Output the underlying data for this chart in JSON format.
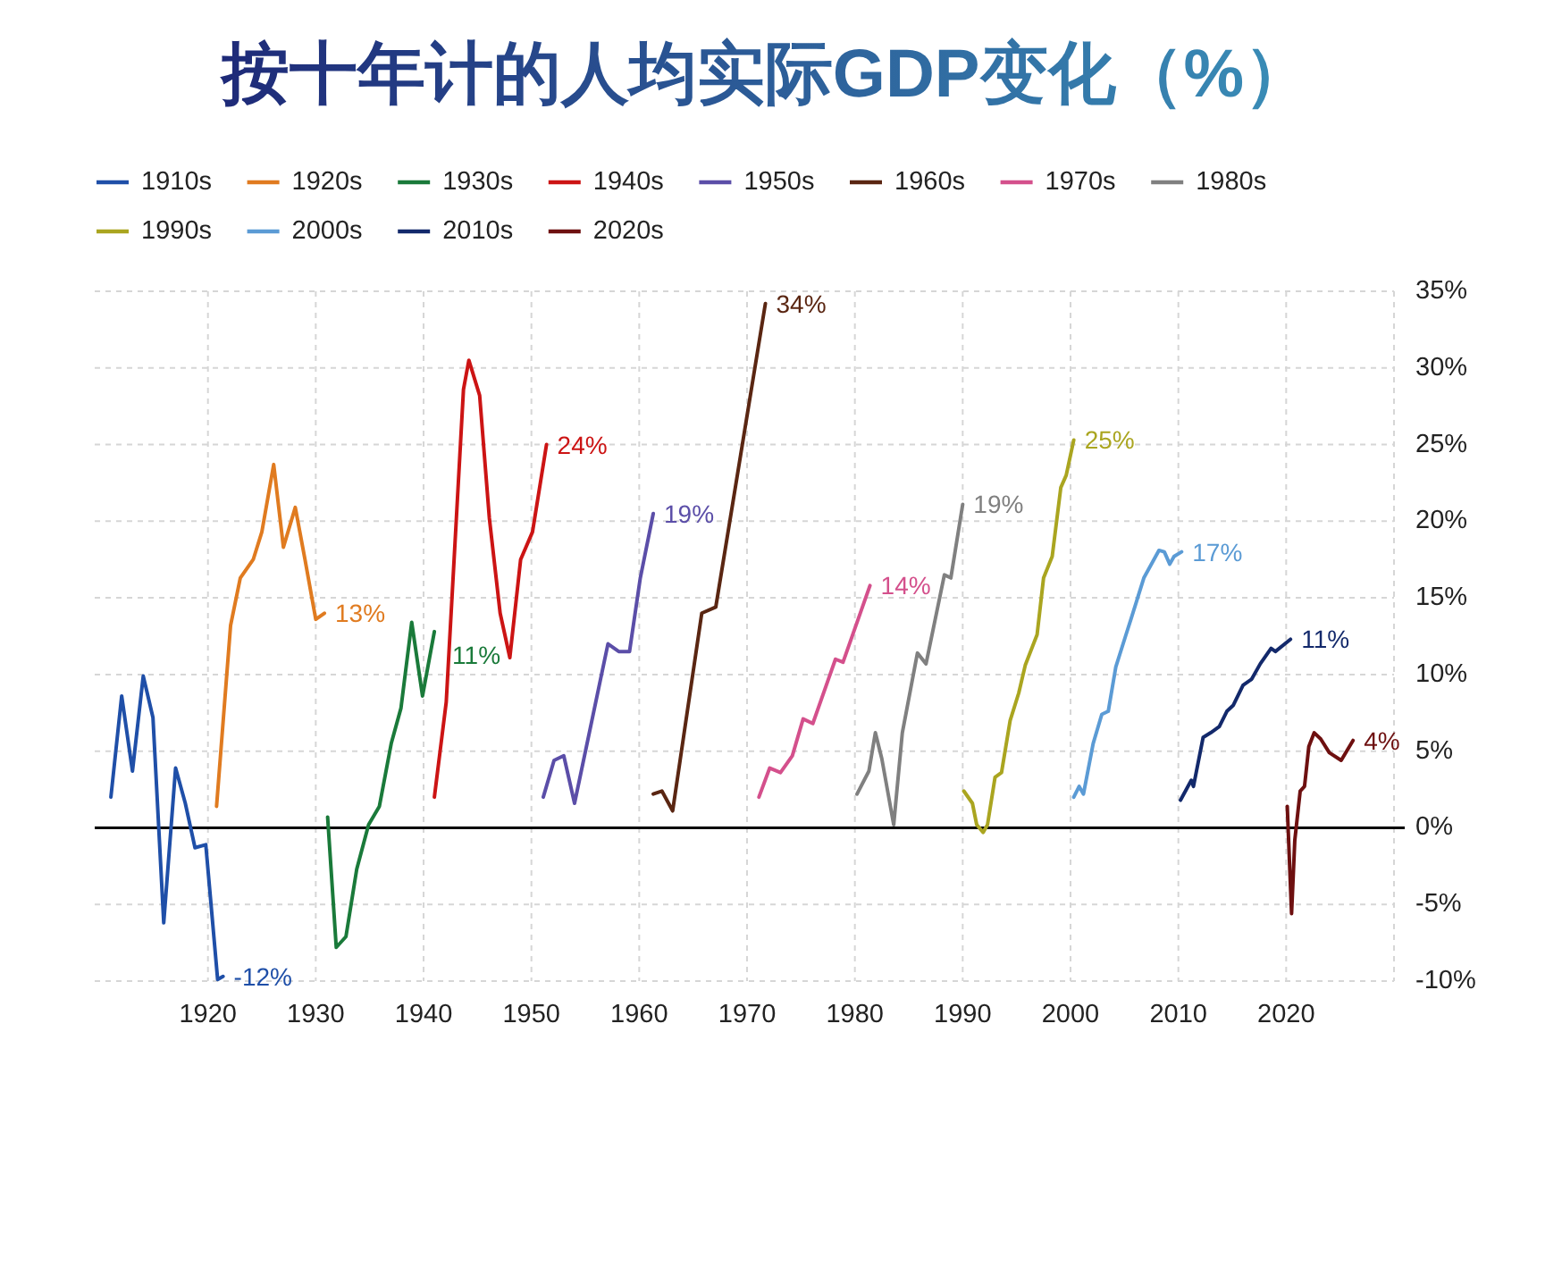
{
  "chart_data": {
    "type": "line",
    "title": "按十年计的人均实际GDP变化（%）",
    "series": [
      {
        "name": "1910s",
        "color": "#1f4fa8",
        "x": [
          1911.0,
          1912.0,
          1913.0,
          1914.0,
          1914.9,
          1915.9,
          1917.0,
          1917.9,
          1918.8,
          1919.8,
          1920.9,
          1921.4
        ],
        "values": [
          2.0,
          8.6,
          3.7,
          9.9,
          7.2,
          -6.2,
          3.9,
          1.6,
          -1.3,
          -1.1,
          -9.9,
          -9.7
        ]
      },
      {
        "name": "1920s",
        "color": "#e07b20",
        "x": [
          1920.8,
          1922.1,
          1923.0,
          1924.2,
          1925.0,
          1926.1,
          1927.0,
          1928.1,
          1929.0,
          1930.0,
          1930.8
        ],
        "values": [
          1.4,
          13.2,
          16.3,
          17.5,
          19.3,
          23.7,
          18.3,
          20.9,
          17.5,
          13.6,
          14.0
        ]
      },
      {
        "name": "1930s",
        "color": "#1a7a3a",
        "x": [
          1931.1,
          1931.9,
          1932.8,
          1933.8,
          1934.9,
          1935.9,
          1937.0,
          1937.9,
          1938.9,
          1939.9,
          1941.0
        ],
        "values": [
          0.7,
          -7.8,
          -7.1,
          -2.7,
          0.2,
          1.4,
          5.5,
          7.8,
          13.4,
          8.6,
          12.8
        ]
      },
      {
        "name": "1940s",
        "color": "#cc1414",
        "x": [
          1941.0,
          1942.1,
          1943.7,
          1944.2,
          1945.2,
          1946.1,
          1947.1,
          1948.0,
          1949.0,
          1950.1,
          1951.4
        ],
        "values": [
          2.0,
          8.2,
          28.6,
          30.5,
          28.2,
          20.2,
          14.0,
          11.1,
          17.5,
          19.3,
          25.0
        ]
      },
      {
        "name": "1950s",
        "color": "#5b4ea8",
        "x": [
          1951.1,
          1952.1,
          1953.0,
          1954.0,
          1957.1,
          1958.1,
          1959.1,
          1960.1,
          1961.3
        ],
        "values": [
          2.0,
          4.4,
          4.7,
          1.6,
          12.0,
          11.5,
          11.5,
          16.3,
          20.5
        ]
      },
      {
        "name": "1960s",
        "color": "#5a2612",
        "x": [
          1961.3,
          1962.1,
          1963.1,
          1965.8,
          1967.1,
          1971.7
        ],
        "values": [
          2.2,
          2.4,
          1.1,
          14.0,
          14.4,
          34.2
        ]
      },
      {
        "name": "1970s",
        "color": "#d4508c",
        "x": [
          1971.1,
          1972.1,
          1973.1,
          1974.2,
          1975.2,
          1976.1,
          1978.2,
          1978.9,
          1981.4
        ],
        "values": [
          2.0,
          3.9,
          3.6,
          4.7,
          7.1,
          6.8,
          11.0,
          10.8,
          15.8
        ]
      },
      {
        "name": "1980s",
        "color": "#808080",
        "x": [
          1980.2,
          1981.3,
          1981.9,
          1982.5,
          1983.6,
          1984.4,
          1985.8,
          1986.6,
          1988.3,
          1988.9,
          1990.0
        ],
        "values": [
          2.2,
          3.7,
          6.2,
          4.5,
          0.2,
          6.2,
          11.4,
          10.7,
          16.5,
          16.3,
          21.1
        ]
      },
      {
        "name": "1990s",
        "color": "#aaa520",
        "x": [
          1990.1,
          1990.9,
          1991.3,
          1991.9,
          1992.3,
          1993.0,
          1993.6,
          1994.4,
          1995.2,
          1995.8,
          1996.9,
          1997.5,
          1998.3,
          1999.1,
          1999.6,
          2000.3
        ],
        "values": [
          2.4,
          1.6,
          0.2,
          -0.3,
          0.2,
          3.3,
          3.6,
          7.0,
          8.8,
          10.6,
          12.6,
          16.3,
          17.7,
          22.2,
          23.0,
          25.3
        ]
      },
      {
        "name": "2000s",
        "color": "#5b9bd5",
        "x": [
          2000.3,
          2000.8,
          2001.2,
          2002.1,
          2002.9,
          2003.5,
          2004.2,
          2005.1,
          2005.6,
          2006.8,
          2008.2,
          2008.7,
          2009.2,
          2009.6,
          2010.3
        ],
        "values": [
          2.0,
          2.7,
          2.2,
          5.5,
          7.4,
          7.6,
          10.5,
          12.5,
          13.6,
          16.3,
          18.1,
          18.0,
          17.2,
          17.7,
          18.0
        ]
      },
      {
        "name": "2010s",
        "color": "#13296b",
        "x": [
          2010.2,
          2011.2,
          2011.4,
          2012.3,
          2013.0,
          2013.8,
          2014.5,
          2015.1,
          2016.0,
          2016.8,
          2017.6,
          2018.6,
          2019.0,
          2020.4
        ],
        "values": [
          1.8,
          3.1,
          2.7,
          5.9,
          6.2,
          6.6,
          7.6,
          8.0,
          9.3,
          9.7,
          10.7,
          11.7,
          11.5,
          12.3
        ]
      },
      {
        "name": "2020s",
        "color": "#6e1010",
        "x": [
          2020.1,
          2020.5,
          2020.8,
          2021.3,
          2021.7,
          2022.1,
          2022.6,
          2023.2,
          2024.0,
          2025.1,
          2026.2
        ],
        "values": [
          1.4,
          -5.6,
          -0.8,
          2.4,
          2.7,
          5.3,
          6.2,
          5.8,
          4.9,
          4.4,
          5.7
        ]
      }
    ],
    "xlim": [
      1909.5,
      2030
    ],
    "xticks": [
      1920,
      1930,
      1940,
      1950,
      1960,
      1970,
      1980,
      1990,
      2000,
      2010,
      2020,
      {
        "value": 2030,
        "label": null
      }
    ],
    "ylim": [
      -10,
      35
    ],
    "yticks": [
      {
        "value": -10,
        "label": "-10%"
      },
      {
        "value": -5,
        "label": "-5%"
      },
      {
        "value": 0,
        "label": "0%"
      },
      {
        "value": 5,
        "label": "5%"
      },
      {
        "value": 10,
        "label": "10%"
      },
      {
        "value": 15,
        "label": "15%"
      },
      {
        "value": 20,
        "label": "20%"
      },
      {
        "value": 25,
        "label": "25%"
      },
      {
        "value": 30,
        "label": "30%"
      },
      {
        "value": 35,
        "label": "35%"
      }
    ],
    "grid": true,
    "legend": "top left",
    "line_style": "solid",
    "ref_lines": [
      {
        "axis": "y",
        "value": 0,
        "color": "#000000"
      }
    ],
    "annotations": [
      {
        "text": "-12%",
        "x": 1921.4,
        "y": -9.7
      },
      {
        "text": "13%",
        "x": 1930.8,
        "y": 14.0
      },
      {
        "text": "11%",
        "x": 1941.0,
        "y": 12.8
      },
      {
        "text": "24%",
        "x": 1951.4,
        "y": 25.0
      },
      {
        "text": "19%",
        "x": 1961.3,
        "y": 20.5
      },
      {
        "text": "34%",
        "x": 1971.7,
        "y": 34.2
      },
      {
        "text": "14%",
        "x": 1981.4,
        "y": 15.8
      },
      {
        "text": "19%",
        "x": 1990.0,
        "y": 21.1
      },
      {
        "text": "25%",
        "x": 2000.3,
        "y": 25.3
      },
      {
        "text": "17%",
        "x": 2010.3,
        "y": 18.0
      },
      {
        "text": "11%",
        "x": 2020.4,
        "y": 12.3
      },
      {
        "text": "4%",
        "x": 2026.2,
        "y": 5.7
      }
    ]
  }
}
